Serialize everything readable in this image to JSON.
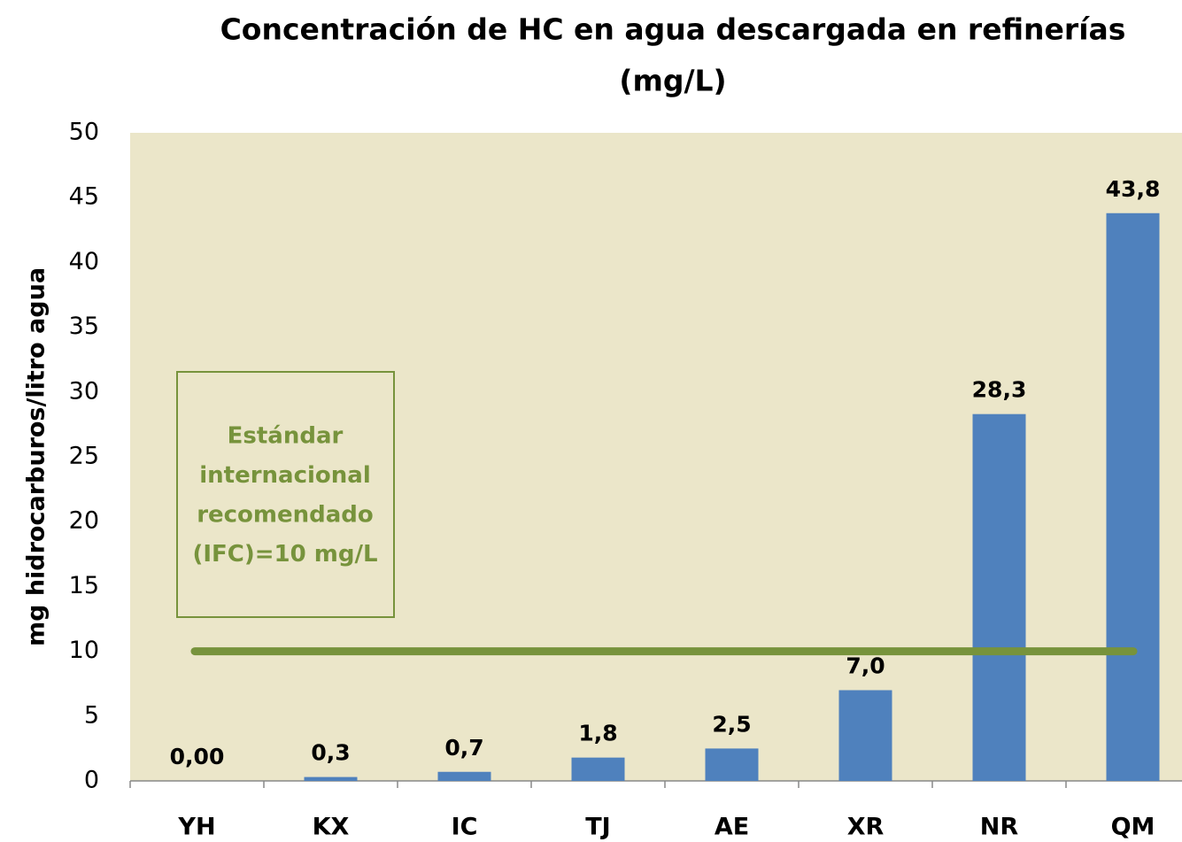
{
  "chart_data": {
    "type": "bar",
    "title": [
      "Concentración de HC en agua descargada en refinerías",
      "(mg/L)"
    ],
    "y_label": "mg hidrocarburos/litro agua",
    "categories": [
      "YH",
      "KX",
      "IC",
      "TJ",
      "AE",
      "XR",
      "NR",
      "QM"
    ],
    "values": [
      0,
      0.3,
      0.7,
      1.8,
      2.5,
      7.0,
      28.3,
      43.8
    ],
    "value_labels": [
      "0,00",
      "0,3",
      "0,7",
      "1,8",
      "2,5",
      "7,0",
      "28,3",
      "43,8"
    ],
    "color": "#4f81bd",
    "ylim": [
      0,
      50
    ],
    "yticks": [
      0,
      5,
      10,
      15,
      20,
      25,
      30,
      35,
      40,
      45,
      50
    ],
    "grid": false,
    "reference_line": {
      "value": 10,
      "color": "#77933c"
    },
    "annotation": [
      "Estándar",
      "internacional",
      "recomendado",
      "(IFC)=10 mg/L"
    ]
  }
}
